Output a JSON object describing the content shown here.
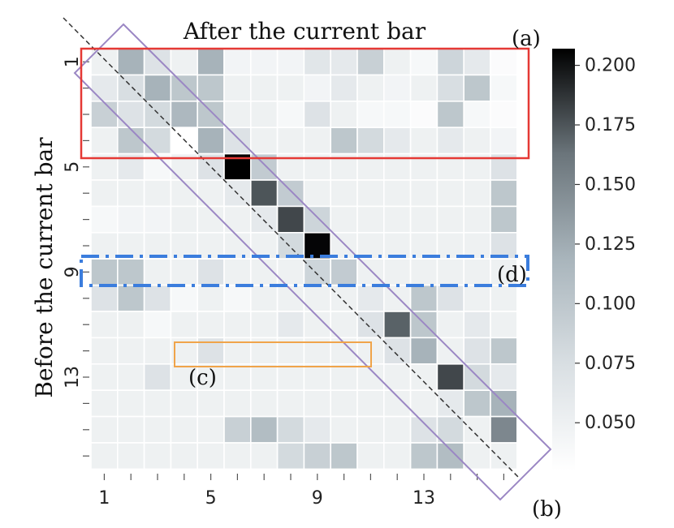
{
  "chart_data": {
    "type": "heatmap",
    "title": "After the current bar",
    "ylabel": "Before  the current bar",
    "x_tick_labels": [
      "1",
      "5",
      "9",
      "13"
    ],
    "y_tick_labels": [
      "1",
      "5",
      "9",
      "13"
    ],
    "x_ticks_at": [
      1,
      5,
      9,
      13
    ],
    "y_ticks_at": [
      1,
      5,
      9,
      13
    ],
    "n_rows": 16,
    "n_cols": 16,
    "colorbar": {
      "min": 0.03,
      "max": 0.207,
      "ticks": [
        0.05,
        0.075,
        0.1,
        0.125,
        0.15,
        0.175,
        0.2
      ],
      "tick_labels": [
        "0.050",
        "0.075",
        "0.100",
        "0.125",
        "0.150",
        "0.175",
        "0.200"
      ]
    },
    "matrix": [
      [
        0.05,
        0.12,
        0.07,
        0.05,
        0.12,
        0.045,
        0.045,
        0.045,
        0.065,
        0.06,
        0.09,
        0.05,
        0.04,
        0.085,
        0.06,
        0.035
      ],
      [
        0.06,
        0.075,
        0.12,
        0.1,
        0.1,
        0.05,
        0.05,
        0.05,
        0.045,
        0.06,
        0.05,
        0.045,
        0.05,
        0.075,
        0.1,
        0.04
      ],
      [
        0.09,
        0.07,
        0.08,
        0.115,
        0.1,
        0.05,
        0.05,
        0.04,
        0.07,
        0.05,
        0.04,
        0.04,
        0.035,
        0.1,
        0.04,
        0.035
      ],
      [
        0.05,
        0.1,
        0.08,
        0.03,
        0.12,
        0.07,
        0.05,
        0.05,
        0.05,
        0.1,
        0.08,
        0.06,
        0.05,
        0.06,
        0.05,
        0.045
      ],
      [
        0.05,
        0.06,
        0.04,
        0.05,
        0.07,
        0.207,
        0.095,
        0.05,
        0.05,
        0.05,
        0.05,
        0.05,
        0.05,
        0.05,
        0.05,
        0.07
      ],
      [
        0.05,
        0.05,
        0.05,
        0.05,
        0.05,
        0.06,
        0.175,
        0.095,
        0.05,
        0.05,
        0.05,
        0.05,
        0.05,
        0.05,
        0.05,
        0.1
      ],
      [
        0.04,
        0.045,
        0.045,
        0.05,
        0.05,
        0.05,
        0.06,
        0.18,
        0.085,
        0.05,
        0.05,
        0.05,
        0.05,
        0.05,
        0.05,
        0.1
      ],
      [
        0.05,
        0.05,
        0.05,
        0.05,
        0.05,
        0.05,
        0.05,
        0.08,
        0.205,
        0.05,
        0.05,
        0.05,
        0.05,
        0.05,
        0.05,
        0.07
      ],
      [
        0.1,
        0.1,
        0.05,
        0.05,
        0.07,
        0.05,
        0.05,
        0.05,
        0.085,
        0.095,
        0.05,
        0.05,
        0.05,
        0.05,
        0.05,
        0.05
      ],
      [
        0.07,
        0.1,
        0.07,
        0.04,
        0.05,
        0.04,
        0.05,
        0.05,
        0.05,
        0.05,
        0.06,
        0.05,
        0.1,
        0.07,
        0.05,
        0.05
      ],
      [
        0.05,
        0.05,
        0.04,
        0.05,
        0.05,
        0.05,
        0.05,
        0.06,
        0.05,
        0.05,
        0.07,
        0.17,
        0.1,
        0.05,
        0.06,
        0.05
      ],
      [
        0.05,
        0.05,
        0.05,
        0.05,
        0.07,
        0.05,
        0.05,
        0.05,
        0.05,
        0.05,
        0.05,
        0.07,
        0.12,
        0.05,
        0.07,
        0.1
      ],
      [
        0.05,
        0.05,
        0.07,
        0.05,
        0.05,
        0.05,
        0.05,
        0.05,
        0.05,
        0.05,
        0.05,
        0.05,
        0.05,
        0.18,
        0.08,
        0.06
      ],
      [
        0.05,
        0.05,
        0.05,
        0.05,
        0.05,
        0.05,
        0.05,
        0.05,
        0.05,
        0.05,
        0.05,
        0.05,
        0.05,
        0.06,
        0.1,
        0.12
      ],
      [
        0.05,
        0.05,
        0.05,
        0.05,
        0.05,
        0.09,
        0.11,
        0.08,
        0.06,
        0.05,
        0.05,
        0.05,
        0.07,
        0.08,
        0.05,
        0.15
      ],
      [
        0.05,
        0.05,
        0.05,
        0.05,
        0.05,
        0.05,
        0.05,
        0.08,
        0.09,
        0.1,
        0.05,
        0.05,
        0.1,
        0.11,
        0.05,
        0.05
      ]
    ],
    "annotations": [
      {
        "label": "(a)",
        "kind": "box",
        "color": "#e53935",
        "rows": [
          1,
          4
        ],
        "cols": [
          1,
          16
        ]
      },
      {
        "label": "(b)",
        "kind": "diagonal band",
        "color": "#9b87c4"
      },
      {
        "label": "(c)",
        "kind": "box",
        "color": "#f0a44a",
        "rows": [
          12,
          12
        ],
        "cols": [
          4,
          11
        ]
      },
      {
        "label": "(d)",
        "kind": "dash-dot box",
        "color": "#3b7ddd",
        "rows": [
          9,
          9
        ],
        "cols": [
          1,
          16
        ]
      }
    ]
  }
}
